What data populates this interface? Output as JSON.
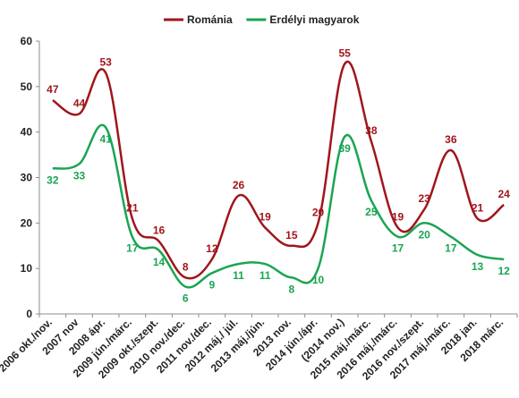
{
  "chart_data": {
    "type": "line",
    "title": "",
    "xlabel": "",
    "ylabel": "",
    "ylim": [
      0,
      60
    ],
    "yticks": [
      0,
      10,
      20,
      30,
      40,
      50,
      60
    ],
    "grid": false,
    "legend_position": "top",
    "categories": [
      "2006 okt./nov.",
      "2007 nov",
      "2008 ápr.",
      "2009 jún./márc.",
      "2009 okt./szept.",
      "2010 nov./dec.",
      "2011 nov./dec.",
      "2012 máj./ júl.",
      "2013 máj./jún.",
      "2013 nov.",
      "2014 jún./ápr.",
      "(2014 nov.)",
      "2015 máj./márc.",
      "2016 máj./márc.",
      "2016 nov./szept.",
      "2017 máj./márc.",
      "2018 jan.",
      "2018 márc."
    ],
    "series": [
      {
        "name": "Románia",
        "color": "#a0161b",
        "values": [
          47,
          44,
          53,
          21,
          16,
          8,
          12,
          26,
          19,
          15,
          20,
          55,
          38,
          19,
          23,
          36,
          21,
          24
        ]
      },
      {
        "name": "Erdélyi magyarok",
        "color": "#1aa552",
        "values": [
          32,
          33,
          41,
          17,
          14,
          6,
          9,
          11,
          11,
          8,
          10,
          39,
          25,
          17,
          20,
          17,
          13,
          12
        ]
      }
    ]
  }
}
